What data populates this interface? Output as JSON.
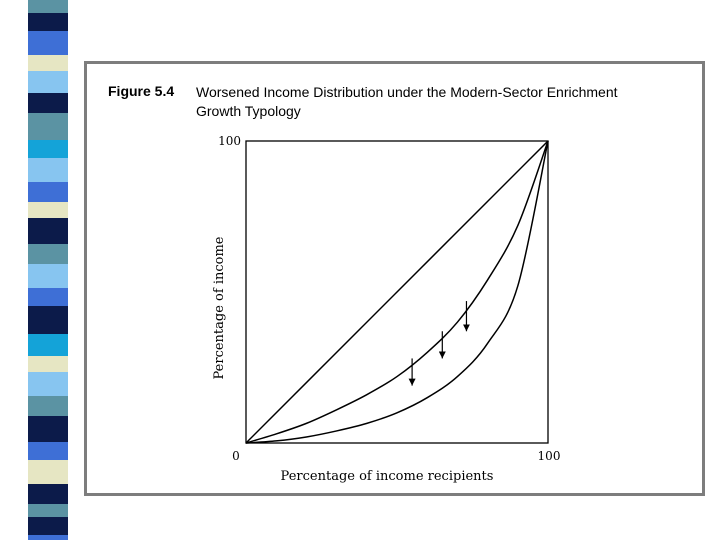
{
  "figure": {
    "label": "Figure 5.4",
    "title": "Worsened Income Distribution under the Modern-Sector Enrichment Growth Typology"
  },
  "chart_data": {
    "type": "line",
    "xlabel": "Percentage of income recipients",
    "ylabel": "Percentage of income",
    "xlim": [
      0,
      100
    ],
    "ylim": [
      0,
      100
    ],
    "x_ticks": [
      {
        "value": 0,
        "label": "0"
      },
      {
        "value": 100,
        "label": "100"
      }
    ],
    "y_ticks": [
      {
        "value": 100,
        "label": "100"
      }
    ],
    "grid": false,
    "series": [
      {
        "x": [
          0,
          100
        ],
        "y": [
          0,
          100
        ]
      },
      {
        "x": [
          0,
          10,
          20,
          30,
          40,
          50,
          60,
          70,
          80,
          90,
          100
        ],
        "y": [
          0,
          3,
          6.5,
          11,
          16,
          22,
          30,
          40,
          54,
          72,
          100
        ]
      },
      {
        "x": [
          0,
          10,
          20,
          30,
          40,
          50,
          60,
          70,
          80,
          90,
          100
        ],
        "y": [
          0,
          0.7,
          2,
          4,
          6.5,
          10,
          15,
          22,
          33,
          52,
          100
        ]
      }
    ],
    "annotations": [
      {
        "type": "arrow",
        "x": 55,
        "y_from": 28,
        "y_to": 19
      },
      {
        "type": "arrow",
        "x": 65,
        "y_from": 37,
        "y_to": 28
      },
      {
        "type": "arrow",
        "x": 73,
        "y_from": 47,
        "y_to": 37
      }
    ],
    "colors": {
      "line": "#000000",
      "stripe": [
        "#5b93a3",
        "#0c1b4a",
        "#3e6fd6",
        "#e6e6c3",
        "#87c5f0",
        "#14a3d8"
      ]
    }
  }
}
